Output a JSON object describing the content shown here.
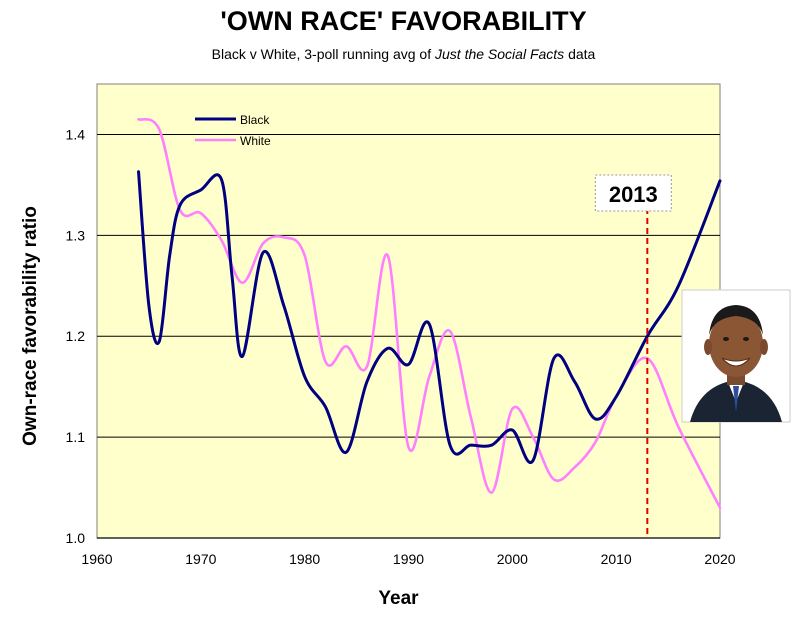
{
  "chart_data": {
    "type": "line",
    "title": "'OWN RACE' FAVORABILITY",
    "subtitle": {
      "prefix": "Black v White, 3-poll running avg of ",
      "source": "Just the Social Facts",
      "suffix": " data"
    },
    "xlabel": "Year",
    "ylabel": "Own-race favorability ratio",
    "xlim": [
      1960,
      2020
    ],
    "ylim": [
      1.0,
      1.45
    ],
    "xticks": [
      1960,
      1970,
      1980,
      1990,
      2000,
      2010,
      2020
    ],
    "yticks": [
      1.0,
      1.1,
      1.2,
      1.3,
      1.4
    ],
    "ytick_labels": [
      "1.0",
      "1.1",
      "1.2",
      "1.3",
      "1.4"
    ],
    "grid": "horizontal",
    "legend_position": "top-left",
    "series": [
      {
        "name": "Black",
        "color": "#000080",
        "x": [
          1964,
          1965,
          1966,
          1967,
          1968,
          1970,
          1972,
          1973,
          1974,
          1976,
          1978,
          1980,
          1982,
          1984,
          1986,
          1988,
          1990,
          1992,
          1994,
          1996,
          1998,
          2000,
          2002,
          2004,
          2006,
          2008,
          2010,
          2013,
          2016,
          2020
        ],
        "y": [
          1.363,
          1.23,
          1.195,
          1.28,
          1.33,
          1.345,
          1.355,
          1.26,
          1.18,
          1.283,
          1.23,
          1.16,
          1.13,
          1.085,
          1.155,
          1.188,
          1.172,
          1.212,
          1.092,
          1.092,
          1.092,
          1.107,
          1.077,
          1.178,
          1.155,
          1.118,
          1.14,
          1.2,
          1.25,
          1.354
        ]
      },
      {
        "name": "White",
        "color": "#ff80ff",
        "x": [
          1964,
          1966,
          1968,
          1970,
          1972,
          1974,
          1976,
          1978,
          1980,
          1982,
          1984,
          1986,
          1988,
          1990,
          1992,
          1994,
          1996,
          1998,
          2000,
          2002,
          2004,
          2006,
          2008,
          2010,
          2013,
          2016,
          2020
        ],
        "y": [
          1.415,
          1.405,
          1.325,
          1.322,
          1.295,
          1.253,
          1.292,
          1.298,
          1.28,
          1.175,
          1.19,
          1.17,
          1.28,
          1.09,
          1.16,
          1.205,
          1.12,
          1.045,
          1.128,
          1.1,
          1.058,
          1.07,
          1.095,
          1.14,
          1.178,
          1.11,
          1.03
        ]
      }
    ],
    "annotations": [
      {
        "label": "2013",
        "x": 2013,
        "style": "dashed-vertical",
        "color": "#e00000"
      }
    ]
  },
  "colors": {
    "plot_background": "#ffffcc",
    "gridline": "#000000",
    "black_series": "#000080",
    "white_series": "#ff80ff",
    "annotation_line": "#e00000"
  },
  "image": {
    "icon": "portrait-photo-icon"
  }
}
